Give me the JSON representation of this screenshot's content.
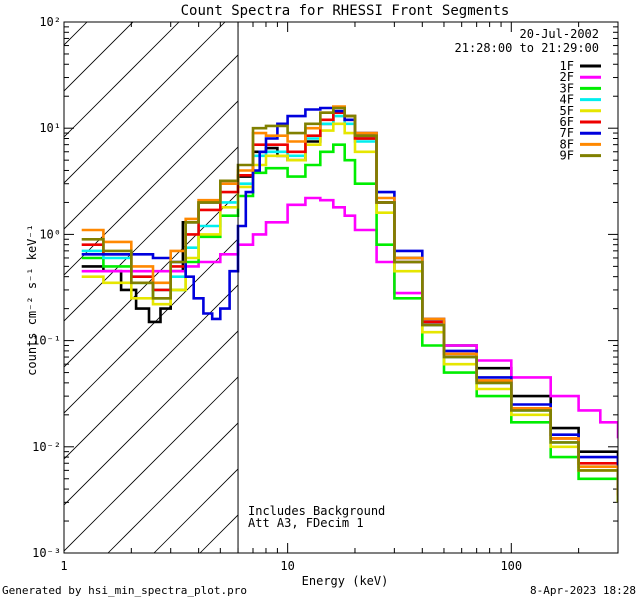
{
  "chart_data": {
    "type": "line",
    "title": "Count Spectra for RHESSI Front Segments",
    "xlabel": "Energy (keV)",
    "ylabel": "counts cm⁻² s⁻¹ keV⁻¹",
    "xscale": "log",
    "yscale": "log",
    "xlim": [
      1,
      300
    ],
    "ylim": [
      0.001,
      100
    ],
    "x_ticks": [
      {
        "value": 1,
        "label": "1"
      },
      {
        "value": 10,
        "label": "10"
      },
      {
        "value": 100,
        "label": "100"
      }
    ],
    "y_ticks": [
      {
        "value": 100,
        "label": "10²"
      },
      {
        "value": 10,
        "label": "10¹"
      },
      {
        "value": 1,
        "label": "10⁰"
      },
      {
        "value": 0.1,
        "label": "10⁻¹"
      },
      {
        "value": 0.01,
        "label": "10⁻²"
      },
      {
        "value": 0.001,
        "label": "10⁻³"
      }
    ],
    "date": "20-Jul-2002",
    "time_range": "21:28:00 to 21:29:00",
    "annotations": [
      "Includes Background",
      "Att A3, FDecim 1"
    ],
    "hatched_region_upper_energy": 6,
    "legend_position": "top-right",
    "series": [
      {
        "name": "1F",
        "color": "#000000",
        "x": [
          1.2,
          1.5,
          1.8,
          2.1,
          2.4,
          2.7,
          3.0,
          3.4,
          4.0,
          5.0,
          6.0,
          7.0,
          8.0,
          9.0,
          10.0,
          12.0,
          14.0,
          16.0,
          18.0,
          20.0,
          25.0,
          30.0,
          40.0,
          50.0,
          70.0,
          100.0,
          150.0,
          200.0,
          300.0
        ],
        "y": [
          0.5,
          0.45,
          0.3,
          0.2,
          0.15,
          0.2,
          0.45,
          1.3,
          2.0,
          3.0,
          3.5,
          6.0,
          6.5,
          5.5,
          5.0,
          7.5,
          11.0,
          14.0,
          13.0,
          8.0,
          2.0,
          0.6,
          0.15,
          0.09,
          0.055,
          0.03,
          0.015,
          0.009,
          0.0045
        ]
      },
      {
        "name": "2F",
        "color": "#ff00ff",
        "x": [
          1.2,
          1.5,
          2.0,
          2.5,
          3.0,
          3.5,
          4.0,
          5.0,
          6.0,
          7.0,
          8.0,
          10.0,
          12.0,
          14.0,
          16.0,
          18.0,
          20.0,
          25.0,
          30.0,
          40.0,
          50.0,
          70.0,
          100.0,
          150.0,
          200.0,
          250.0,
          300.0
        ],
        "y": [
          0.45,
          0.45,
          0.45,
          0.45,
          0.45,
          0.5,
          0.55,
          0.65,
          0.8,
          1.0,
          1.3,
          1.9,
          2.2,
          2.1,
          1.8,
          1.5,
          1.1,
          0.55,
          0.28,
          0.14,
          0.09,
          0.065,
          0.045,
          0.03,
          0.022,
          0.017,
          0.012
        ]
      },
      {
        "name": "3F",
        "color": "#00ee00",
        "x": [
          1.2,
          1.5,
          2.0,
          2.5,
          3.0,
          3.5,
          4.0,
          5.0,
          6.0,
          7.0,
          8.0,
          10.0,
          12.0,
          14.0,
          16.0,
          18.0,
          20.0,
          25.0,
          30.0,
          40.0,
          50.0,
          70.0,
          100.0,
          150.0,
          200.0,
          300.0
        ],
        "y": [
          0.6,
          0.5,
          0.35,
          0.25,
          0.3,
          0.55,
          0.95,
          1.5,
          2.3,
          3.8,
          4.2,
          3.5,
          4.5,
          6.0,
          7.0,
          5.0,
          3.0,
          0.8,
          0.25,
          0.09,
          0.05,
          0.03,
          0.017,
          0.008,
          0.005,
          0.003
        ]
      },
      {
        "name": "4F",
        "color": "#00eeee",
        "x": [
          1.2,
          1.5,
          2.0,
          2.5,
          3.0,
          3.5,
          4.0,
          5.0,
          6.0,
          7.0,
          8.0,
          10.0,
          12.0,
          14.0,
          16.0,
          18.0,
          20.0,
          25.0,
          30.0,
          40.0,
          50.0,
          70.0,
          100.0,
          150.0,
          200.0,
          300.0
        ],
        "y": [
          0.7,
          0.6,
          0.4,
          0.3,
          0.4,
          0.75,
          1.2,
          2.0,
          3.0,
          5.5,
          6.0,
          5.5,
          8.0,
          11.0,
          13.0,
          11.0,
          7.5,
          2.0,
          0.55,
          0.14,
          0.07,
          0.04,
          0.022,
          0.011,
          0.0065,
          0.0035
        ]
      },
      {
        "name": "5F",
        "color": "#e6e600",
        "x": [
          1.2,
          1.5,
          2.0,
          2.5,
          3.0,
          3.5,
          4.0,
          5.0,
          6.0,
          7.0,
          8.0,
          10.0,
          12.0,
          14.0,
          16.0,
          18.0,
          20.0,
          25.0,
          30.0,
          40.0,
          50.0,
          70.0,
          100.0,
          150.0,
          200.0,
          300.0
        ],
        "y": [
          0.4,
          0.35,
          0.25,
          0.22,
          0.3,
          0.6,
          1.0,
          1.8,
          2.8,
          4.5,
          5.5,
          5.0,
          7.0,
          9.5,
          11.0,
          9.0,
          6.0,
          1.6,
          0.45,
          0.12,
          0.06,
          0.035,
          0.02,
          0.01,
          0.006,
          0.003
        ]
      },
      {
        "name": "6F",
        "color": "#ee0000",
        "x": [
          1.2,
          1.5,
          2.0,
          2.5,
          3.0,
          3.5,
          4.0,
          5.0,
          6.0,
          7.0,
          8.0,
          10.0,
          12.0,
          14.0,
          16.0,
          18.0,
          20.0,
          25.0,
          30.0,
          40.0,
          50.0,
          70.0,
          100.0,
          150.0,
          200.0,
          300.0
        ],
        "y": [
          0.8,
          0.65,
          0.4,
          0.3,
          0.5,
          1.0,
          1.7,
          2.5,
          3.6,
          7.0,
          7.0,
          6.0,
          8.5,
          12.0,
          14.0,
          12.0,
          8.0,
          2.0,
          0.55,
          0.15,
          0.075,
          0.042,
          0.023,
          0.012,
          0.007,
          0.0035
        ]
      },
      {
        "name": "7F",
        "color": "#0000dd",
        "x": [
          1.2,
          1.5,
          2.0,
          2.5,
          3.0,
          3.5,
          3.8,
          4.2,
          4.6,
          5.0,
          5.5,
          6.0,
          6.5,
          7.0,
          7.5,
          8.0,
          9.0,
          10.0,
          12.0,
          14.0,
          16.0,
          18.0,
          20.0,
          25.0,
          30.0,
          40.0,
          50.0,
          70.0,
          100.0,
          150.0,
          200.0,
          300.0
        ],
        "y": [
          0.65,
          0.65,
          0.65,
          0.6,
          0.55,
          0.4,
          0.25,
          0.18,
          0.16,
          0.2,
          0.45,
          1.2,
          2.5,
          4.0,
          6.0,
          8.0,
          11.0,
          13.0,
          15.0,
          15.5,
          14.5,
          12.0,
          9.0,
          2.5,
          0.7,
          0.16,
          0.08,
          0.045,
          0.025,
          0.013,
          0.008,
          0.004
        ]
      },
      {
        "name": "8F",
        "color": "#ff8800",
        "x": [
          1.2,
          1.5,
          2.0,
          2.5,
          3.0,
          3.5,
          4.0,
          5.0,
          6.0,
          7.0,
          8.0,
          10.0,
          12.0,
          14.0,
          16.0,
          18.0,
          20.0,
          25.0,
          30.0,
          40.0,
          50.0,
          70.0,
          100.0,
          150.0,
          200.0,
          300.0
        ],
        "y": [
          1.1,
          0.85,
          0.5,
          0.35,
          0.7,
          1.4,
          2.1,
          3.0,
          4.0,
          9.0,
          8.5,
          7.5,
          10.0,
          14.0,
          16.0,
          13.0,
          9.0,
          2.2,
          0.6,
          0.16,
          0.075,
          0.042,
          0.023,
          0.012,
          0.0065,
          0.0035
        ]
      },
      {
        "name": "9F",
        "color": "#808000",
        "x": [
          1.2,
          1.5,
          2.0,
          2.5,
          3.0,
          3.5,
          4.0,
          5.0,
          6.0,
          7.0,
          8.0,
          10.0,
          12.0,
          14.0,
          16.0,
          18.0,
          20.0,
          25.0,
          30.0,
          40.0,
          50.0,
          70.0,
          100.0,
          150.0,
          200.0,
          300.0
        ],
        "y": [
          0.9,
          0.7,
          0.35,
          0.25,
          0.55,
          1.3,
          2.0,
          3.2,
          4.5,
          10.0,
          10.5,
          9.0,
          11.0,
          14.0,
          15.5,
          13.0,
          8.5,
          2.0,
          0.55,
          0.14,
          0.07,
          0.04,
          0.022,
          0.011,
          0.006,
          0.003
        ]
      }
    ]
  },
  "footer": {
    "left": "Generated by hsi_min_spectra_plot.pro",
    "right": "8-Apr-2023 18:28"
  }
}
